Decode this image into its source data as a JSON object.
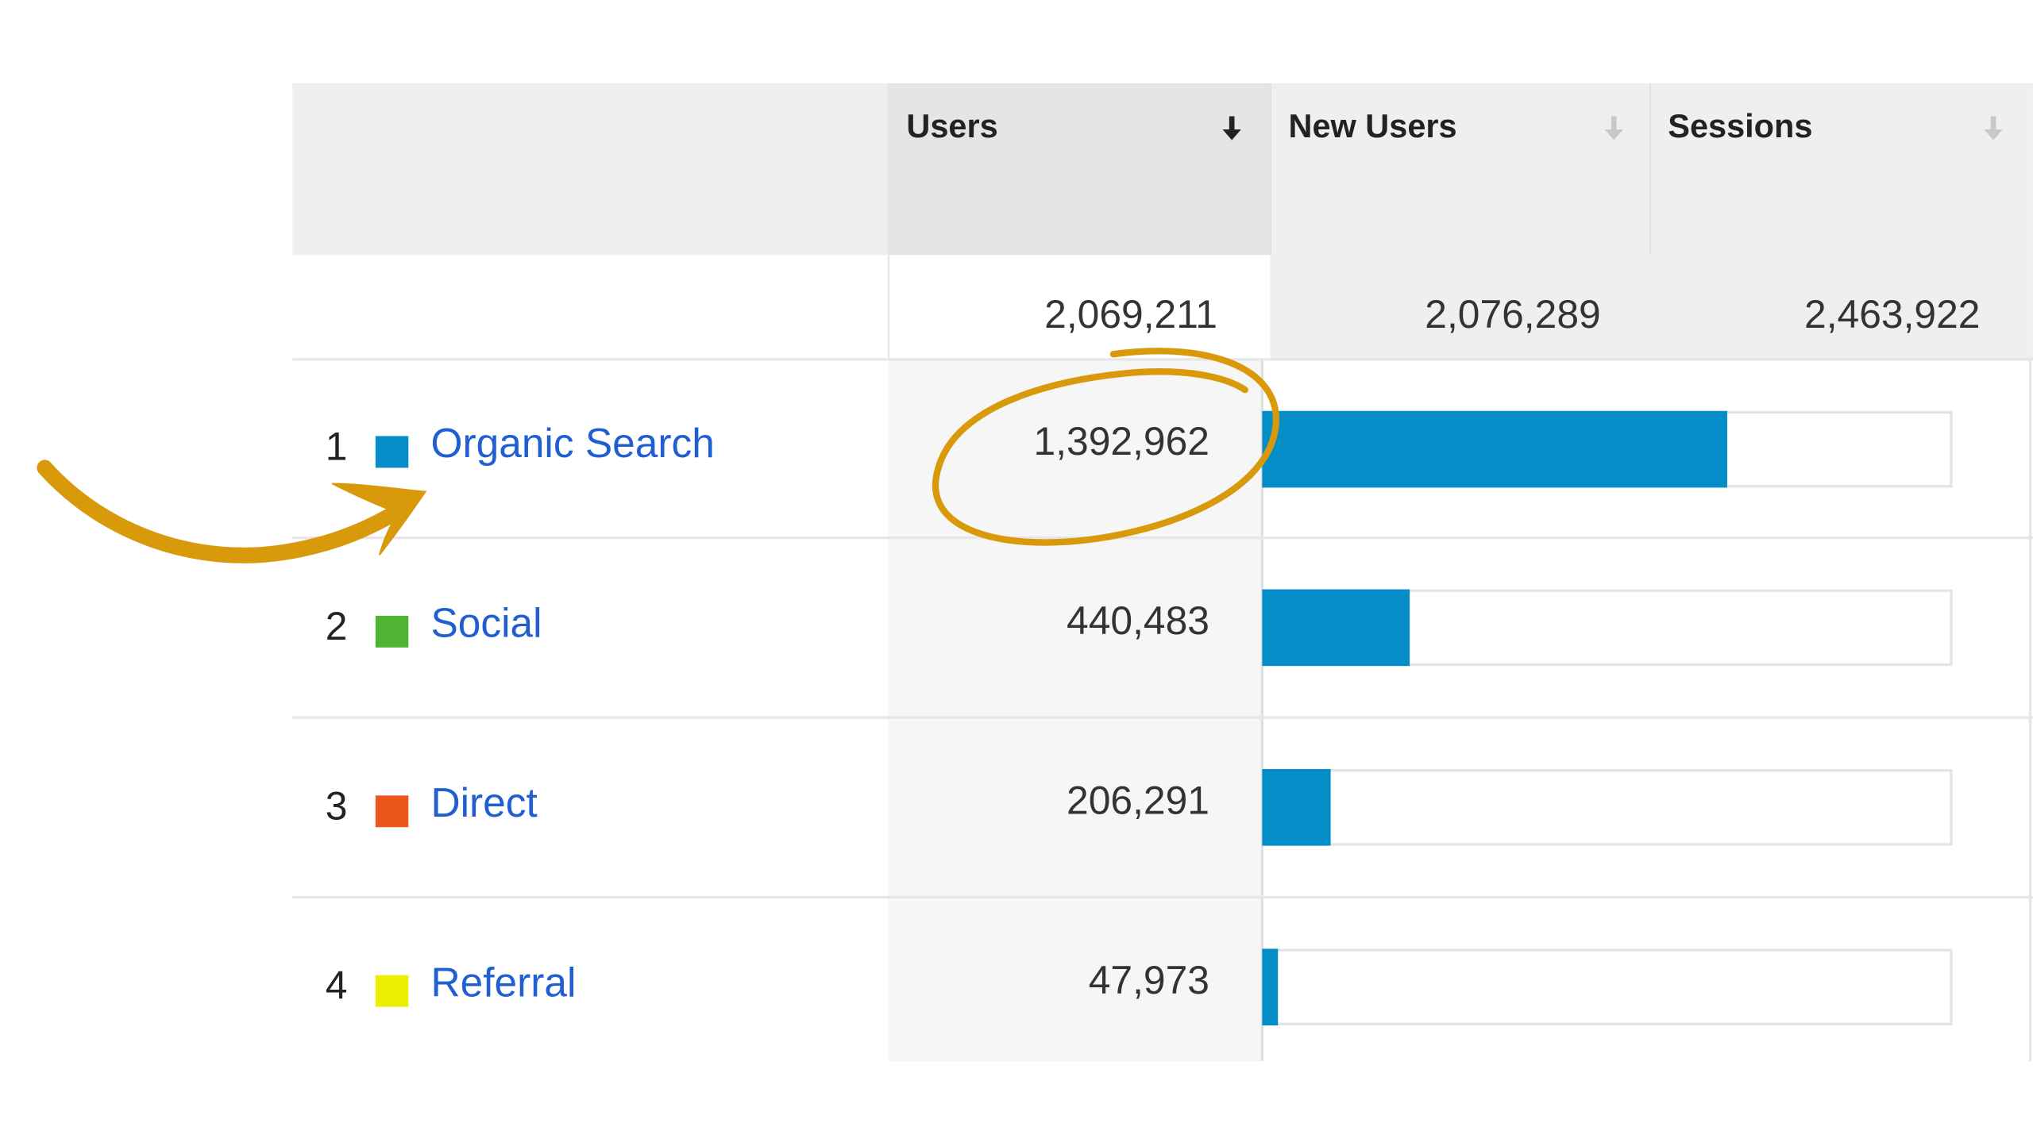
{
  "header": {
    "columns": [
      {
        "label": "Users",
        "sort_icon": "sort-descending-icon",
        "active": true
      },
      {
        "label": "New Users",
        "sort_icon": "sort-descending-icon",
        "active": false
      },
      {
        "label": "Sessions",
        "sort_icon": "sort-descending-icon",
        "active": false
      }
    ]
  },
  "totals": {
    "users": "2,069,211",
    "new_users": "2,076,289",
    "sessions": "2,463,922"
  },
  "rows": [
    {
      "index": "1",
      "channel": "Organic Search",
      "users": "1,392,962",
      "share": 0.6732,
      "swatch_color": "#058dc7"
    },
    {
      "index": "2",
      "channel": "Social",
      "users": "440,483",
      "share": 0.2129,
      "swatch_color": "#50b432"
    },
    {
      "index": "3",
      "channel": "Direct",
      "users": "206,291",
      "share": 0.0997,
      "swatch_color": "#ed561b"
    },
    {
      "index": "4",
      "channel": "Referral",
      "users": "47,973",
      "share": 0.0232,
      "swatch_color": "#edef00"
    }
  ],
  "colors": {
    "bar": "#058dc7",
    "link": "#1f5fd1",
    "annotation": "#d89a0a"
  },
  "annotation": {
    "arrow_icon": "hand-drawn-arrow-icon",
    "circle": "hand-drawn-circle-highlight"
  }
}
